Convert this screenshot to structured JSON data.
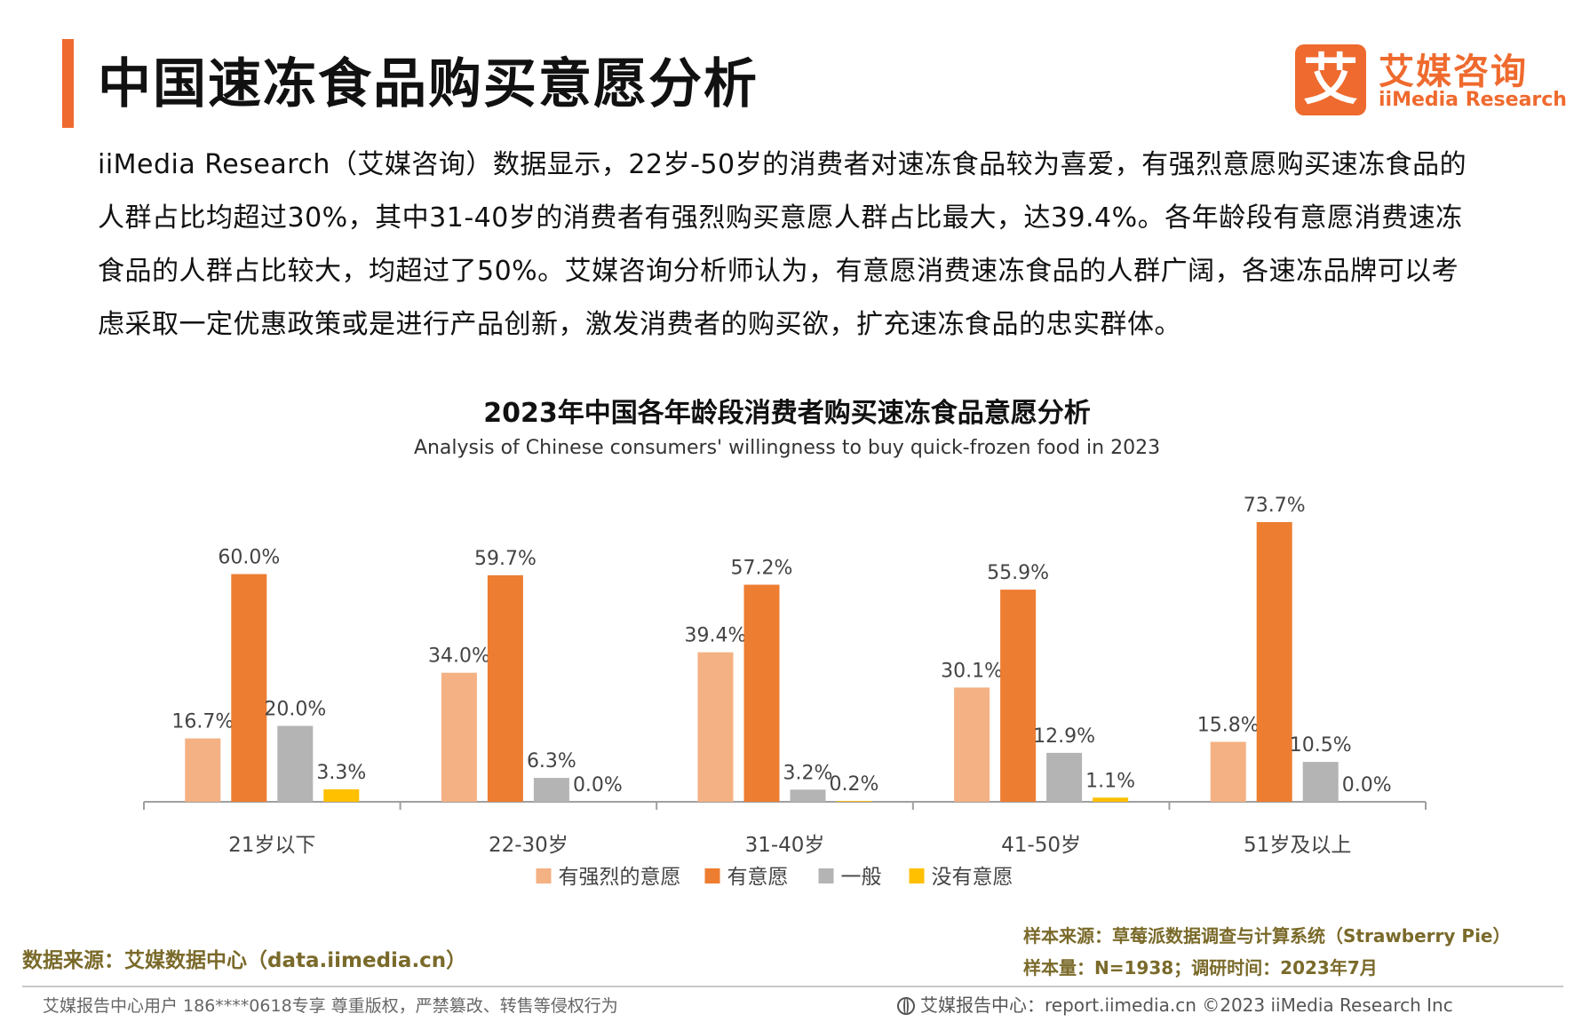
{
  "header": {
    "title": "中国速冻食品购买意愿分析",
    "logo_mark": "艾",
    "logo_cn": "艾媒咨询",
    "logo_en": "iiMedia Research"
  },
  "intro": "iiMedia Research（艾媒咨询）数据显示，22岁-50岁的消费者对速冻食品较为喜爱，有强烈意愿购买速冻食品的人群占比均超过30%，其中31-40岁的消费者有强烈购买意愿人群占比最大，达39.4%。各年龄段有意愿消费速冻食品的人群占比较大，均超过了50%。艾媒咨询分析师认为，有意愿消费速冻食品的人群广阔，各速冻品牌可以考虑采取一定优惠政策或是进行产品创新，激发消费者的购买欲，扩充速冻食品的忠实群体。",
  "chart_data": {
    "type": "bar",
    "title": "2023年中国各年龄段消费者购买速冻食品意愿分析",
    "subtitle": "Analysis of Chinese consumers' willingness to buy quick-frozen food in 2023",
    "categories": [
      "21岁以下",
      "22-30岁",
      "31-40岁",
      "41-50岁",
      "51岁及以上"
    ],
    "series": [
      {
        "name": "有强烈的意愿",
        "color": "#f4b183",
        "values": [
          16.7,
          34.0,
          39.4,
          30.1,
          15.8
        ],
        "labels": [
          "16.7%",
          "34.0%",
          "39.4%",
          "30.1%",
          "15.8%"
        ]
      },
      {
        "name": "有意愿",
        "color": "#ed7d31",
        "values": [
          60.0,
          59.7,
          57.2,
          55.9,
          73.7
        ],
        "labels": [
          "60.0%",
          "59.7%",
          "57.2%",
          "55.9%",
          "73.7%"
        ]
      },
      {
        "name": "一般",
        "color": "#b4b4b4",
        "values": [
          20.0,
          6.3,
          3.2,
          12.9,
          10.5
        ],
        "labels": [
          "20.0%",
          "6.3%",
          "3.2%",
          "12.9%",
          "10.5%"
        ]
      },
      {
        "name": "没有意愿",
        "color": "#ffc000",
        "values": [
          3.3,
          0.0,
          0.2,
          1.1,
          0.0
        ],
        "labels": [
          "3.3%",
          "0.0%",
          "0.2%",
          "1.1%",
          "0.0%"
        ]
      }
    ],
    "ylim": [
      0,
      80
    ],
    "legend": "bottom",
    "grid": false
  },
  "sources": {
    "left": "数据来源：艾媒数据中心（data.iimedia.cn）",
    "sample_source": "样本来源：草莓派数据调查与计算系统（Strawberry Pie）",
    "sample_size": "样本量：N=1938；调研时间：2023年7月"
  },
  "footer": {
    "left": "艾媒报告中心用户 186****0618专享 尊重版权，严禁篡改、转售等侵权行为",
    "right": "艾媒报告中心：report.iimedia.cn   ©2023  iiMedia Research  Inc"
  }
}
